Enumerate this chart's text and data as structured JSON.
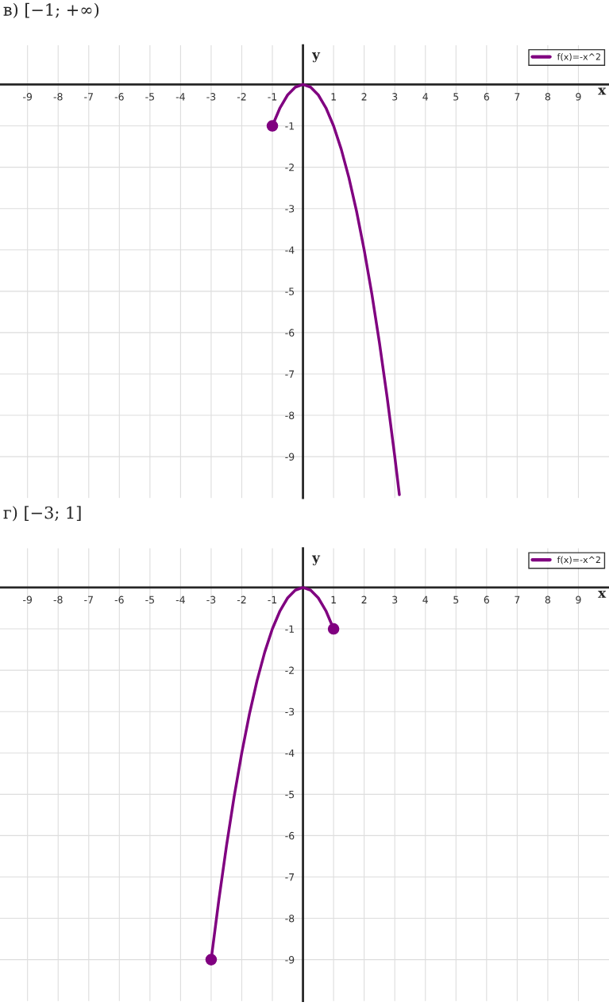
{
  "chart_data": [
    {
      "type": "line",
      "title": "в) [−1; +∞)",
      "xlabel": "x",
      "ylabel": "y",
      "xlim": [
        -9.9,
        10
      ],
      "ylim": [
        -10,
        0.95
      ],
      "xticks": [
        -9,
        -8,
        -7,
        -6,
        -5,
        -4,
        -3,
        -2,
        -1,
        1,
        2,
        3,
        4,
        5,
        6,
        7,
        8,
        9
      ],
      "yticks": [
        -9,
        -8,
        -7,
        -6,
        -5,
        -4,
        -3,
        -2,
        -1
      ],
      "grid": true,
      "legend": "top right",
      "series": [
        {
          "name": "f(x)=-x^2",
          "color": "#800080",
          "x": [
            -1,
            -0.75,
            -0.5,
            -0.25,
            0,
            0.25,
            0.5,
            0.75,
            1,
            1.25,
            1.5,
            1.75,
            2,
            2.25,
            2.5,
            2.75,
            3,
            3.15
          ],
          "values": [
            -1,
            -0.5625,
            -0.25,
            -0.0625,
            0,
            -0.0625,
            -0.25,
            -0.5625,
            -1,
            -1.5625,
            -2.25,
            -3.0625,
            -4,
            -5.0625,
            -6.25,
            -7.5625,
            -9,
            -9.92
          ]
        },
        {
          "type": "scatter",
          "color": "#800080",
          "marker": "circle",
          "x": [
            -1
          ],
          "values": [
            -1
          ]
        }
      ]
    },
    {
      "type": "line",
      "title": "г) [−3; 1]",
      "xlabel": "x",
      "ylabel": "y",
      "xlim": [
        -9.9,
        10
      ],
      "ylim": [
        -10,
        0.95
      ],
      "xticks": [
        -9,
        -8,
        -7,
        -6,
        -5,
        -4,
        -3,
        -2,
        -1,
        1,
        2,
        3,
        4,
        5,
        6,
        7,
        8,
        9
      ],
      "yticks": [
        -9,
        -8,
        -7,
        -6,
        -5,
        -4,
        -3,
        -2,
        -1
      ],
      "grid": true,
      "legend": "top right",
      "series": [
        {
          "name": "f(x)=-x^2",
          "color": "#800080",
          "x": [
            -3,
            -2.75,
            -2.5,
            -2.25,
            -2,
            -1.75,
            -1.5,
            -1.25,
            -1,
            -0.75,
            -0.5,
            -0.25,
            0,
            0.25,
            0.5,
            0.75,
            1
          ],
          "values": [
            -9,
            -7.5625,
            -6.25,
            -5.0625,
            -4,
            -3.0625,
            -2.25,
            -1.5625,
            -1,
            -0.5625,
            -0.25,
            -0.0625,
            0,
            -0.0625,
            -0.25,
            -0.5625,
            -1
          ]
        },
        {
          "type": "scatter",
          "color": "#800080",
          "marker": "circle",
          "x": [
            -3,
            1
          ],
          "values": [
            -9,
            -1
          ]
        }
      ]
    }
  ]
}
